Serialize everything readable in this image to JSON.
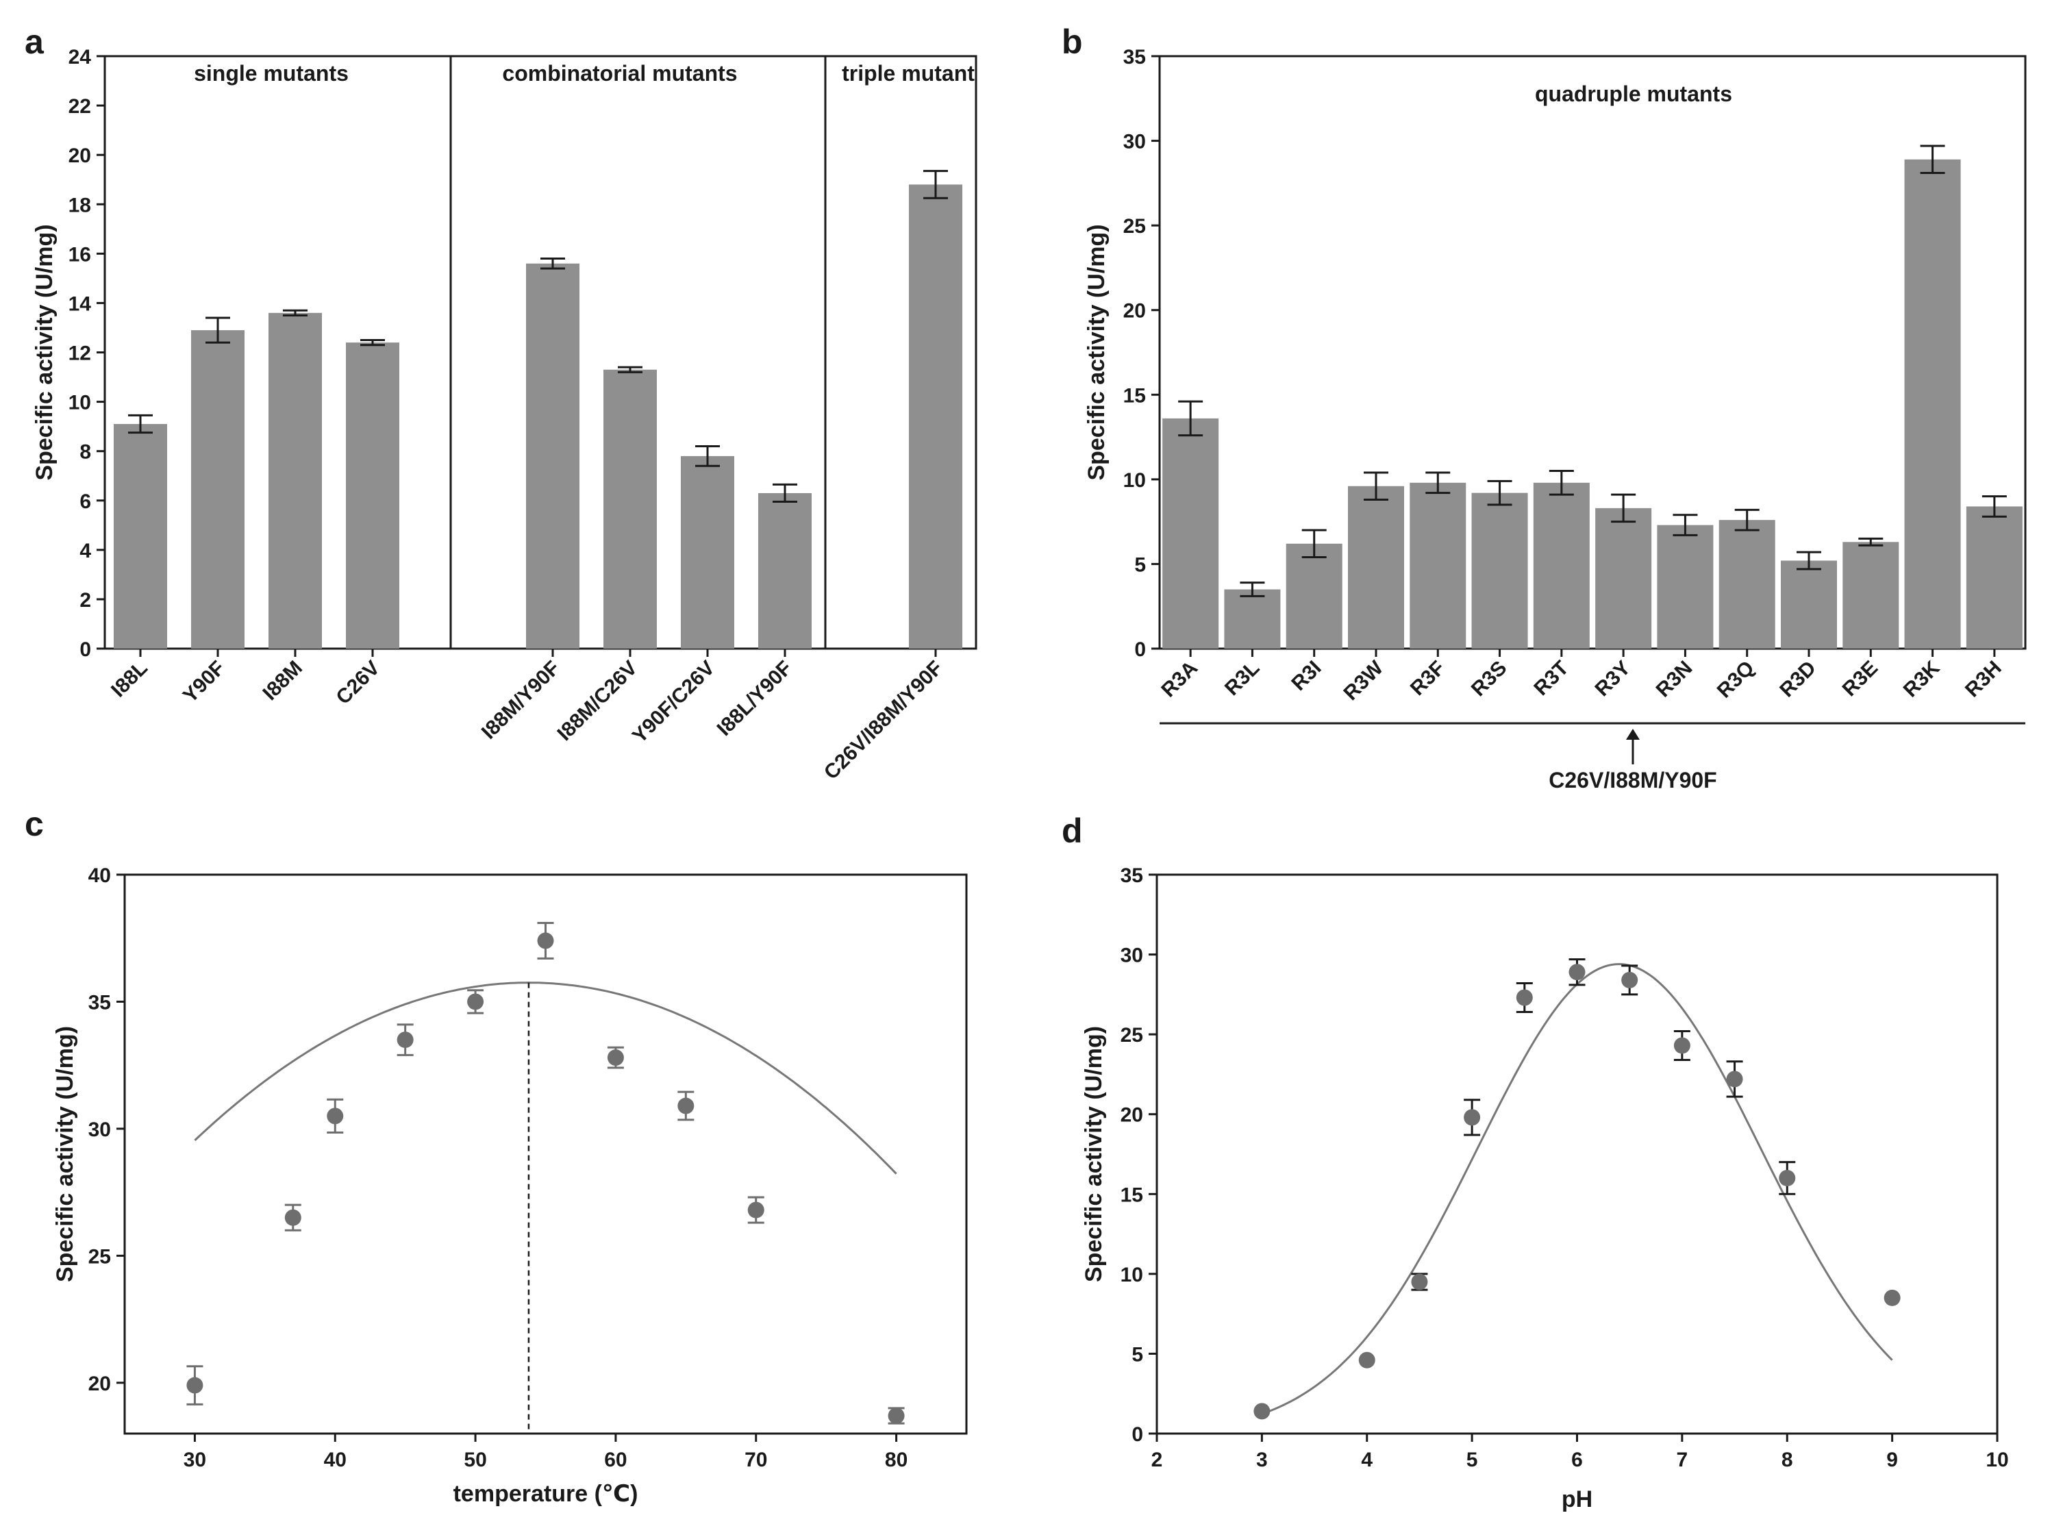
{
  "panels": {
    "a": "a",
    "b": "b",
    "c": "c",
    "d": "d"
  },
  "chart_data": [
    {
      "id": "a",
      "type": "bar",
      "ylabel": "Specific activity (U/mg)",
      "xlabel": "",
      "ylim": [
        0,
        24
      ],
      "yticks": [
        0,
        2,
        4,
        6,
        8,
        10,
        12,
        14,
        16,
        18,
        20,
        22,
        24
      ],
      "groups": [
        {
          "label": "single mutants",
          "categories": [
            "I88L",
            "Y90F",
            "I88M",
            "C26V"
          ],
          "values": [
            9.1,
            12.9,
            13.6,
            12.4
          ],
          "errors": [
            0.35,
            0.5,
            0.1,
            0.1
          ]
        },
        {
          "label": "combinatorial mutants",
          "categories": [
            "I88M/Y90F",
            "I88M/C26V",
            "Y90F/C26V",
            "I88L/Y90F"
          ],
          "values": [
            15.6,
            11.3,
            7.8,
            6.3
          ],
          "errors": [
            0.2,
            0.1,
            0.4,
            0.35
          ]
        },
        {
          "label": "triple mutant",
          "categories": [
            "C26V/I88M/Y90F"
          ],
          "values": [
            18.8
          ],
          "errors": [
            0.55
          ]
        }
      ]
    },
    {
      "id": "b",
      "type": "bar",
      "ylabel": "Specific activity (U/mg)",
      "ylim": [
        0,
        35
      ],
      "yticks": [
        0,
        5,
        10,
        15,
        20,
        25,
        30,
        35
      ],
      "annotation": "quadruple mutants",
      "bracket_label": "C26V/I88M/Y90F",
      "categories": [
        "R3A",
        "R3L",
        "R3I",
        "R3W",
        "R3F",
        "R3S",
        "R3T",
        "R3Y",
        "R3N",
        "R3Q",
        "R3D",
        "R3E",
        "R3K",
        "R3H"
      ],
      "values": [
        13.6,
        3.5,
        6.2,
        9.6,
        9.8,
        9.2,
        9.8,
        8.3,
        7.3,
        7.6,
        5.2,
        6.3,
        28.9,
        8.4
      ],
      "errors": [
        1.0,
        0.4,
        0.8,
        0.8,
        0.6,
        0.7,
        0.7,
        0.8,
        0.6,
        0.6,
        0.5,
        0.2,
        0.8,
        0.6
      ]
    },
    {
      "id": "c",
      "type": "scatter",
      "xlabel": "temperature (℃)",
      "ylabel": "Specific activity (U/mg)",
      "xlim": [
        25,
        85
      ],
      "ylim": [
        18,
        40
      ],
      "xticks": [
        30,
        40,
        50,
        60,
        70,
        80
      ],
      "yticks": [
        20,
        25,
        30,
        35,
        40
      ],
      "x": [
        30,
        37,
        40,
        45,
        50,
        55,
        60,
        65,
        70,
        80
      ],
      "y": [
        19.9,
        26.5,
        30.5,
        33.5,
        35.0,
        37.4,
        32.8,
        30.9,
        26.8,
        18.7
      ],
      "errors": [
        0.75,
        0.5,
        0.65,
        0.6,
        0.45,
        0.7,
        0.4,
        0.55,
        0.5,
        0.3
      ],
      "fit": {
        "type": "quadratic",
        "peak_x": 53.8,
        "peak_y": 35.75,
        "curvature": -0.01096,
        "x_range": [
          30,
          80
        ]
      },
      "vline_x": 53.8
    },
    {
      "id": "d",
      "type": "scatter",
      "xlabel": "pH",
      "ylabel": "Specific activity (U/mg)",
      "xlim": [
        2,
        10
      ],
      "ylim": [
        0,
        35
      ],
      "xticks": [
        2,
        3,
        4,
        5,
        6,
        7,
        8,
        9,
        10
      ],
      "yticks": [
        0,
        5,
        10,
        15,
        20,
        25,
        30,
        35
      ],
      "x": [
        3,
        4,
        4.5,
        5,
        5.5,
        6,
        6.5,
        7,
        7.5,
        8,
        9
      ],
      "y": [
        1.4,
        4.6,
        9.5,
        19.8,
        27.3,
        28.9,
        28.4,
        24.3,
        22.2,
        16.0,
        8.5
      ],
      "errors": [
        0,
        0,
        0.5,
        1.1,
        0.9,
        0.8,
        0.9,
        0.9,
        1.1,
        1.0,
        0
      ],
      "fit": {
        "type": "gaussian",
        "amplitude": 29.4,
        "center": 6.4,
        "sigma": 1.35,
        "x_range": [
          3,
          9
        ]
      }
    }
  ]
}
